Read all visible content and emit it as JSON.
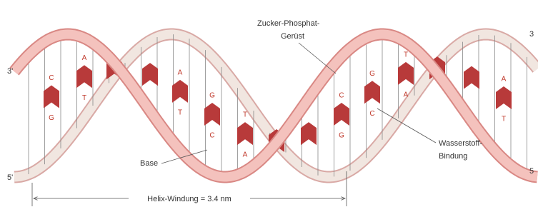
{
  "labels": {
    "backbone": [
      "Zucker-Phosphat-",
      "Gerüst"
    ],
    "hydrogen_bond": [
      "Wasserstoff-",
      "Bindung"
    ],
    "base": "Base",
    "helix_turn": "Helix-Windung = 3.4 nm"
  },
  "ends": {
    "left_top": "3'",
    "left_bottom": "5'",
    "right_top": "3",
    "right_bottom": "5"
  },
  "base_pairs": [
    {
      "top": "C",
      "bottom": "G"
    },
    {
      "top": "A",
      "bottom": "T"
    },
    {
      "top": "A",
      "bottom": "T"
    },
    {
      "top": "G",
      "bottom": "C"
    },
    {
      "top": "T",
      "bottom": "A"
    },
    {
      "top": "C",
      "bottom": "G"
    },
    {
      "top": "G",
      "bottom": "C"
    },
    {
      "top": "T",
      "bottom": "A"
    },
    {
      "top": "A",
      "bottom": "T"
    }
  ]
}
